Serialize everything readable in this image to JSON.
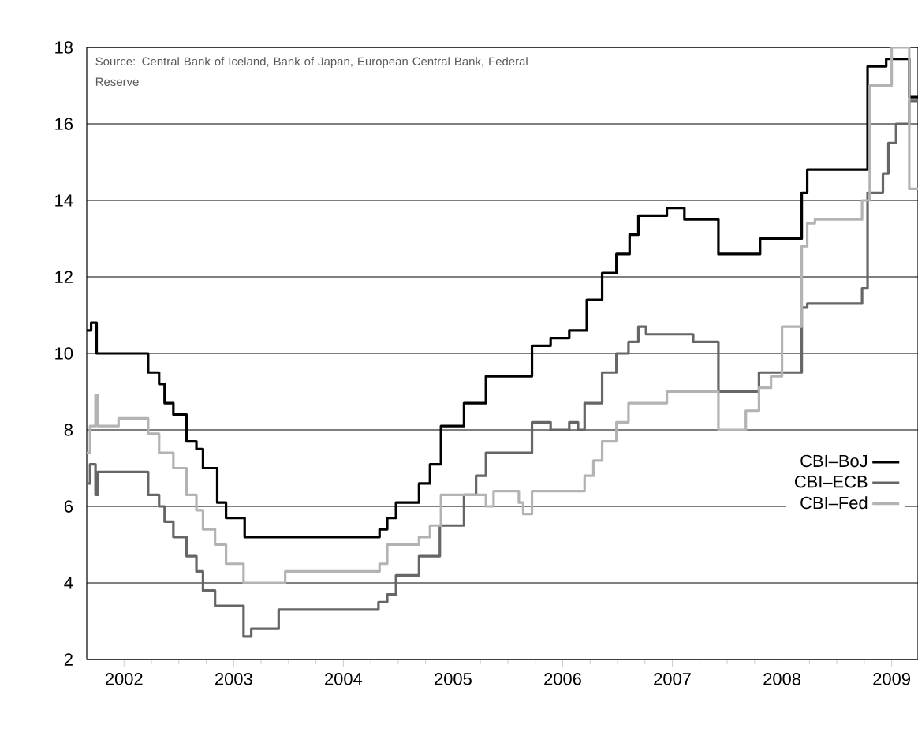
{
  "chart_data": {
    "type": "step",
    "annotations": [
      "Source: Central Bank of Iceland, Bank of Japan, European Central Bank, Federal Reserve"
    ],
    "xlim": [
      2001.66,
      2009.24
    ],
    "ylim": [
      2,
      18
    ],
    "xticks": [
      2002,
      2003,
      2004,
      2005,
      2006,
      2007,
      2008,
      2009
    ],
    "yticks": [
      2,
      4,
      6,
      8,
      10,
      12,
      14,
      16,
      18
    ],
    "grid": "y",
    "legend": "right",
    "marker": "none",
    "line_style": "solid",
    "series": [
      {
        "name": "CBI–BoJ",
        "color": "#000000",
        "x": [
          2001.66,
          2001.7,
          2001.75,
          2002.22,
          2002.32,
          2002.37,
          2002.45,
          2002.57,
          2002.66,
          2002.72,
          2002.85,
          2002.93,
          2003.1,
          2004.33,
          2004.4,
          2004.48,
          2004.69,
          2004.79,
          2004.89,
          2005.1,
          2005.3,
          2005.72,
          2005.89,
          2006.06,
          2006.22,
          2006.36,
          2006.49,
          2006.61,
          2006.69,
          2006.95,
          2007.11,
          2007.42,
          2007.8,
          2008.18,
          2008.23,
          2008.78,
          2008.95,
          2009.16,
          2009.24
        ],
        "values": [
          10.6,
          10.8,
          10.0,
          9.5,
          9.2,
          8.7,
          8.4,
          7.7,
          7.5,
          7.0,
          6.1,
          5.7,
          5.2,
          5.4,
          5.7,
          6.1,
          6.6,
          7.1,
          8.1,
          8.7,
          9.4,
          10.2,
          10.4,
          10.6,
          11.4,
          12.1,
          12.6,
          13.1,
          13.6,
          13.8,
          13.5,
          12.6,
          13.0,
          14.2,
          14.8,
          17.5,
          17.7,
          16.7,
          16.7
        ]
      },
      {
        "name": "CBI–ECB",
        "color": "#666666",
        "x": [
          2001.66,
          2001.69,
          2001.74,
          2001.76,
          2002.22,
          2002.32,
          2002.37,
          2002.45,
          2002.57,
          2002.66,
          2002.72,
          2002.83,
          2003.09,
          2003.16,
          2003.41,
          2004.32,
          2004.4,
          2004.48,
          2004.69,
          2004.88,
          2005.1,
          2005.21,
          2005.3,
          2005.72,
          2005.89,
          2006.06,
          2006.14,
          2006.2,
          2006.36,
          2006.49,
          2006.6,
          2006.69,
          2006.76,
          2007.19,
          2007.42,
          2007.79,
          2008.18,
          2008.23,
          2008.73,
          2008.78,
          2008.92,
          2008.97,
          2009.04,
          2009.16,
          2009.24
        ],
        "values": [
          6.6,
          7.1,
          6.3,
          6.9,
          6.3,
          6.0,
          5.6,
          5.2,
          4.7,
          4.3,
          3.8,
          3.4,
          2.6,
          2.8,
          3.3,
          3.5,
          3.7,
          4.2,
          4.7,
          5.5,
          6.3,
          6.8,
          7.4,
          8.2,
          8.0,
          8.2,
          8.0,
          8.7,
          9.5,
          10.0,
          10.3,
          10.7,
          10.5,
          10.3,
          9.0,
          9.5,
          11.2,
          11.3,
          11.7,
          14.2,
          14.7,
          15.5,
          16.0,
          16.6,
          16.6
        ]
      },
      {
        "name": "CBI–Fed",
        "color": "#b3b3b3",
        "x": [
          2001.66,
          2001.69,
          2001.74,
          2001.76,
          2001.95,
          2002.22,
          2002.32,
          2002.45,
          2002.57,
          2002.66,
          2002.72,
          2002.83,
          2002.93,
          2003.09,
          2003.47,
          2004.33,
          2004.4,
          2004.48,
          2004.69,
          2004.79,
          2004.89,
          2005.1,
          2005.3,
          2005.37,
          2005.6,
          2005.64,
          2005.72,
          2006.2,
          2006.28,
          2006.36,
          2006.49,
          2006.6,
          2006.69,
          2006.95,
          2007.42,
          2007.67,
          2007.79,
          2007.9,
          2008.0,
          2008.18,
          2008.23,
          2008.3,
          2008.73,
          2008.8,
          2009.0,
          2009.16,
          2009.24
        ],
        "values": [
          7.4,
          8.1,
          8.9,
          8.1,
          8.3,
          7.9,
          7.4,
          7.0,
          6.3,
          5.9,
          5.4,
          5.0,
          4.5,
          4.0,
          4.3,
          4.5,
          5.0,
          5.0,
          5.2,
          5.5,
          6.3,
          6.3,
          6.0,
          6.4,
          6.1,
          5.8,
          6.4,
          6.8,
          7.2,
          7.7,
          8.2,
          8.7,
          8.7,
          9.0,
          8.0,
          8.5,
          9.1,
          9.4,
          10.7,
          12.8,
          13.4,
          13.5,
          14.0,
          17.0,
          18.0,
          14.3,
          14.3
        ]
      }
    ]
  }
}
